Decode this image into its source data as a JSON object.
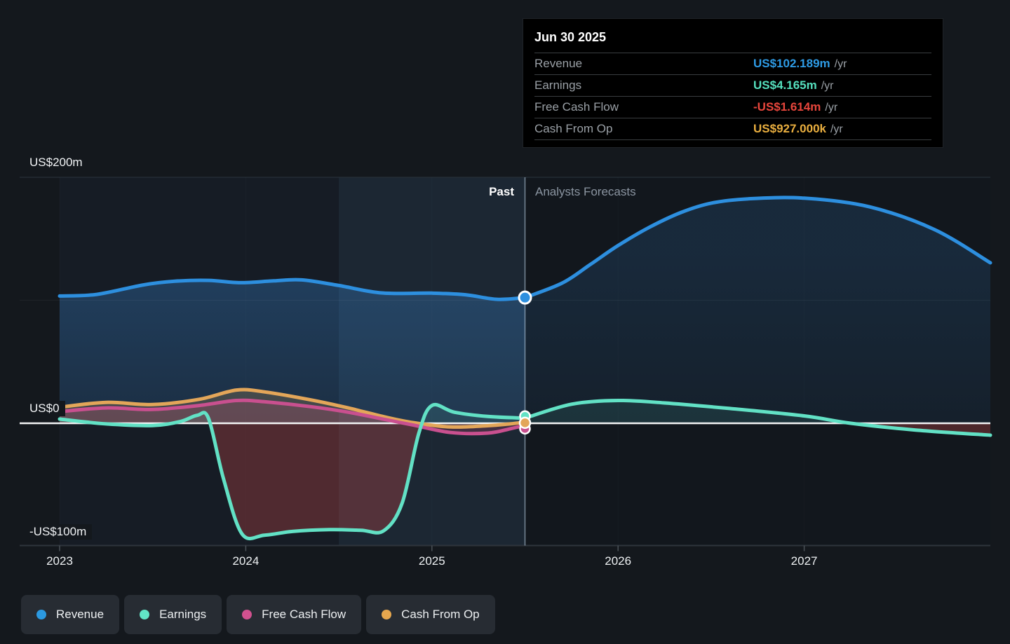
{
  "tooltip": {
    "date": "Jun 30 2025",
    "rows": [
      {
        "label": "Revenue",
        "value": "US$102.189m",
        "unit": "/yr",
        "color": "#2e9be5"
      },
      {
        "label": "Earnings",
        "value": "US$4.165m",
        "unit": "/yr",
        "color": "#55e0be"
      },
      {
        "label": "Free Cash Flow",
        "value": "-US$1.614m",
        "unit": "/yr",
        "color": "#e8463c"
      },
      {
        "label": "Cash From Op",
        "value": "US$927.000k",
        "unit": "/yr",
        "color": "#e9ae3f"
      }
    ]
  },
  "annotations": {
    "past_label": "Past",
    "forecast_label": "Analysts Forecasts"
  },
  "legend": [
    {
      "label": "Revenue",
      "color": "#2b99e0"
    },
    {
      "label": "Earnings",
      "color": "#62e4c6"
    },
    {
      "label": "Free Cash Flow",
      "color": "#d1518f"
    },
    {
      "label": "Cash From Op",
      "color": "#e7a74e"
    }
  ],
  "chart_data": {
    "type": "line",
    "units": "US$ millions per year",
    "x_domain": [
      2023,
      2028
    ],
    "divider_x": 2025.5,
    "highlight_band": [
      2024.5,
      2025.5
    ],
    "grid": "minimal",
    "legend_position": "bottom-left",
    "y_ticks": [
      {
        "label": "US$200m",
        "value": 200
      },
      {
        "label": "US$0",
        "value": 0
      },
      {
        "label": "-US$100m",
        "value": -100
      }
    ],
    "x_ticks": [
      {
        "label": "2023",
        "year": 2023
      },
      {
        "label": "2024",
        "year": 2024
      },
      {
        "label": "2025",
        "year": 2025
      },
      {
        "label": "2026",
        "year": 2026
      },
      {
        "label": "2027",
        "year": 2027
      }
    ],
    "series": [
      {
        "name": "Revenue",
        "color": "#2d8fdf",
        "past": [
          [
            2023.0,
            103.5
          ],
          [
            2023.2,
            104.8
          ],
          [
            2023.45,
            112.5
          ],
          [
            2023.62,
            115.5
          ],
          [
            2023.8,
            116.2
          ],
          [
            2023.97,
            114.3
          ],
          [
            2024.15,
            115.8
          ],
          [
            2024.3,
            116.6
          ],
          [
            2024.5,
            112.0
          ],
          [
            2024.73,
            106.0
          ],
          [
            2025.0,
            105.8
          ],
          [
            2025.18,
            104.5
          ],
          [
            2025.35,
            100.8
          ],
          [
            2025.5,
            102.189
          ]
        ],
        "forecast": [
          [
            2025.5,
            102.189
          ],
          [
            2025.7,
            114.0
          ],
          [
            2025.85,
            129.0
          ],
          [
            2026.0,
            144.5
          ],
          [
            2026.17,
            159.5
          ],
          [
            2026.34,
            171.5
          ],
          [
            2026.5,
            179.0
          ],
          [
            2026.7,
            182.5
          ],
          [
            2027.0,
            183.0
          ],
          [
            2027.35,
            176.0
          ],
          [
            2027.7,
            157.5
          ],
          [
            2028.0,
            130.5
          ]
        ]
      },
      {
        "name": "Earnings",
        "color": "#62e1c5",
        "past": [
          [
            2023.0,
            3.4
          ],
          [
            2023.25,
            -0.5
          ],
          [
            2023.5,
            -1.8
          ],
          [
            2023.65,
            1.5
          ],
          [
            2023.74,
            6.5
          ],
          [
            2023.8,
            4.0
          ],
          [
            2023.88,
            -45.0
          ],
          [
            2023.98,
            -90.0
          ],
          [
            2024.1,
            -91.0
          ],
          [
            2024.25,
            -88.0
          ],
          [
            2024.45,
            -86.5
          ],
          [
            2024.62,
            -87.0
          ],
          [
            2024.74,
            -87.5
          ],
          [
            2024.84,
            -65.0
          ],
          [
            2024.93,
            -8.0
          ],
          [
            2025.0,
            14.5
          ],
          [
            2025.12,
            9.0
          ],
          [
            2025.3,
            5.5
          ],
          [
            2025.5,
            4.165
          ]
        ],
        "forecast": [
          [
            2025.5,
            4.165
          ],
          [
            2025.75,
            15.5
          ],
          [
            2026.0,
            18.5
          ],
          [
            2026.25,
            16.5
          ],
          [
            2026.6,
            12.0
          ],
          [
            2027.0,
            6.0
          ],
          [
            2027.25,
            0.0
          ],
          [
            2027.6,
            -5.5
          ],
          [
            2028.0,
            -9.7
          ]
        ]
      },
      {
        "name": "Free Cash Flow",
        "color": "#c9508f",
        "past": [
          [
            2023.0,
            9.5
          ],
          [
            2023.25,
            12.5
          ],
          [
            2023.5,
            11.2
          ],
          [
            2023.75,
            14.5
          ],
          [
            2023.95,
            18.5
          ],
          [
            2024.1,
            17.5
          ],
          [
            2024.35,
            13.5
          ],
          [
            2024.55,
            9.0
          ],
          [
            2024.75,
            3.0
          ],
          [
            2024.9,
            -1.5
          ],
          [
            2025.1,
            -7.5
          ],
          [
            2025.3,
            -8.0
          ],
          [
            2025.42,
            -4.5
          ],
          [
            2025.5,
            -1.614
          ]
        ],
        "forecast": []
      },
      {
        "name": "Cash From Op",
        "color": "#e3a659",
        "past": [
          [
            2023.0,
            13.0
          ],
          [
            2023.25,
            17.0
          ],
          [
            2023.5,
            15.2
          ],
          [
            2023.75,
            19.5
          ],
          [
            2023.95,
            27.0
          ],
          [
            2024.1,
            25.5
          ],
          [
            2024.35,
            19.0
          ],
          [
            2024.55,
            12.5
          ],
          [
            2024.75,
            5.0
          ],
          [
            2024.9,
            0.5
          ],
          [
            2025.1,
            -3.0
          ],
          [
            2025.3,
            -2.0
          ],
          [
            2025.42,
            -0.5
          ],
          [
            2025.5,
            0.927
          ]
        ],
        "forecast": []
      }
    ]
  }
}
